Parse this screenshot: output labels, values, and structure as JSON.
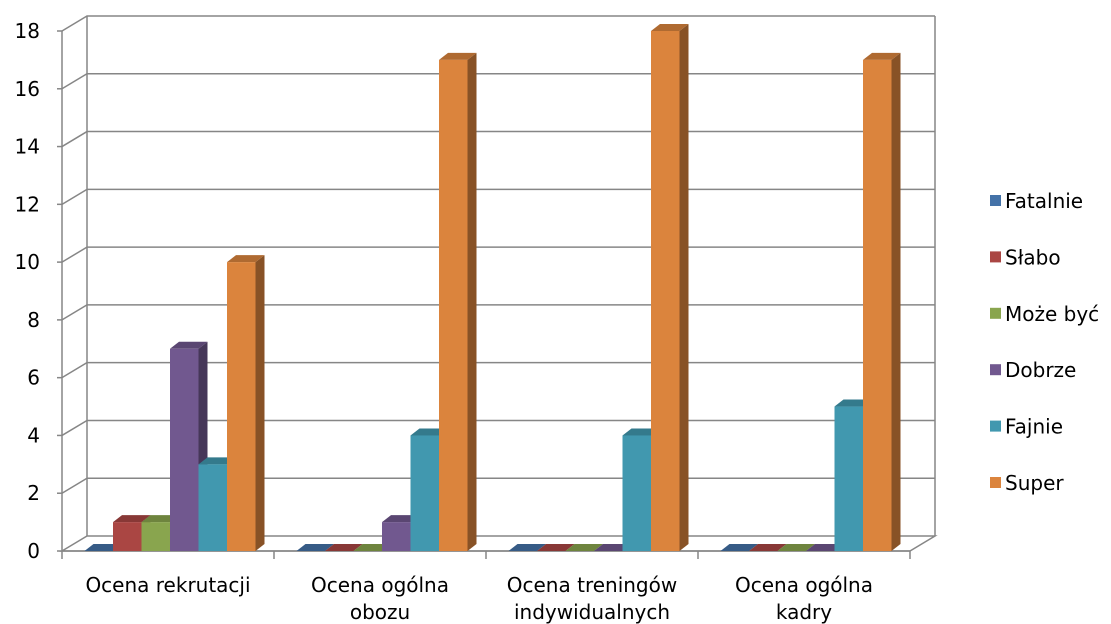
{
  "chart_data": {
    "type": "bar",
    "categories": [
      [
        "Ocena rekrutacji"
      ],
      [
        "Ocena ogólna",
        "obozu"
      ],
      [
        "Ocena treningów",
        "indywidualnych"
      ],
      [
        "Ocena ogólna",
        "kadry"
      ]
    ],
    "series": [
      {
        "name": "Fatalnie",
        "color": "#4472A8",
        "values": [
          0,
          0,
          0,
          0
        ]
      },
      {
        "name": "Słabo",
        "color": "#AA4643",
        "values": [
          1,
          0,
          0,
          0
        ]
      },
      {
        "name": "Może być",
        "color": "#89A54E",
        "values": [
          1,
          0,
          0,
          0
        ]
      },
      {
        "name": "Dobrze",
        "color": "#71588F",
        "values": [
          7,
          1,
          0,
          0
        ]
      },
      {
        "name": "Fajnie",
        "color": "#4198AF",
        "values": [
          3,
          4,
          4,
          5
        ]
      },
      {
        "name": "Super",
        "color": "#DB843D",
        "values": [
          10,
          17,
          18,
          17
        ]
      }
    ],
    "yticks": [
      "0",
      "2",
      "4",
      "6",
      "8",
      "10",
      "12",
      "14",
      "16",
      "18"
    ],
    "ylim": [
      0,
      18
    ],
    "grid": true,
    "legend_position": "right",
    "title": "",
    "xlabel": "",
    "ylabel": ""
  }
}
